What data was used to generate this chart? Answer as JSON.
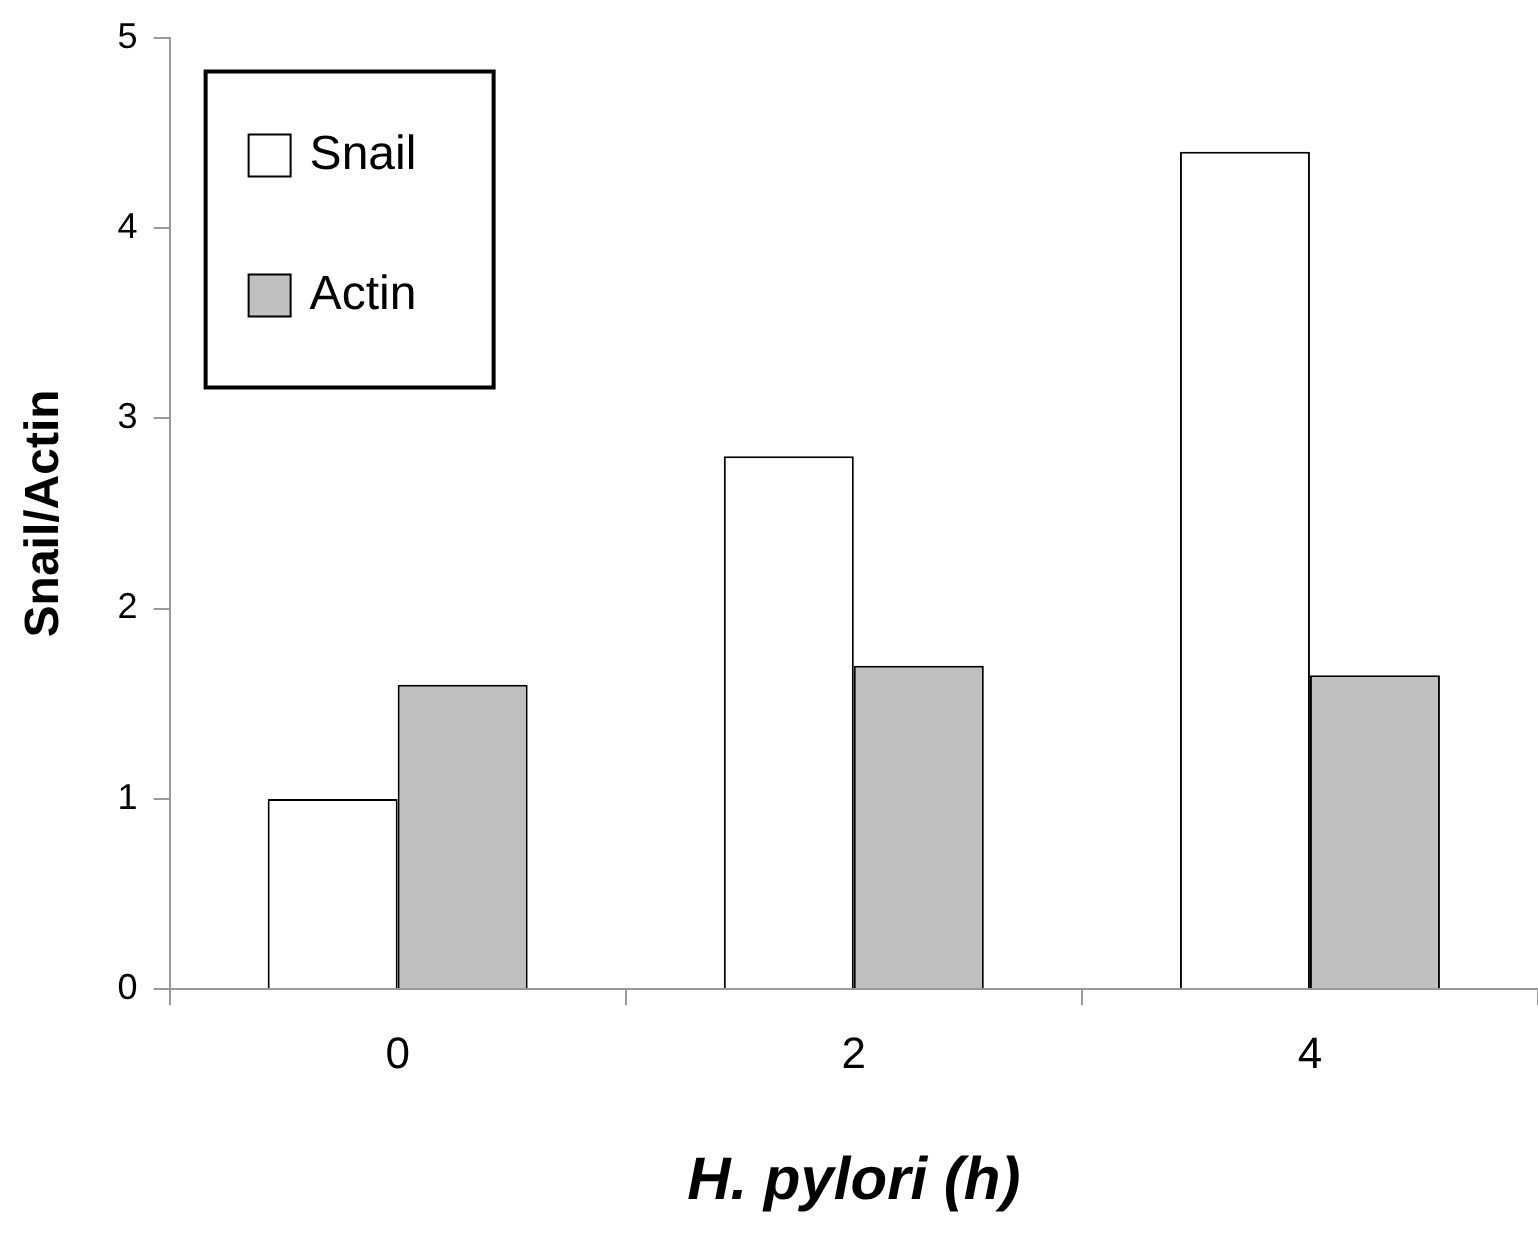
{
  "chart_data": {
    "type": "bar",
    "xlabel": "H. pylori (h)",
    "ylabel": "Snail/Actin",
    "categories": [
      "0",
      "2",
      "4"
    ],
    "series": [
      {
        "name": "Snail",
        "color": "#ffffff",
        "values": [
          1,
          2.8,
          4.4
        ]
      },
      {
        "name": "Actin",
        "color": "#c0c0c0",
        "values": [
          1.6,
          1.7,
          1.65
        ]
      }
    ],
    "ylim": [
      0,
      5
    ],
    "yticks": [
      0,
      1,
      2,
      3,
      4,
      5
    ],
    "grid": false,
    "legend": "top left"
  }
}
